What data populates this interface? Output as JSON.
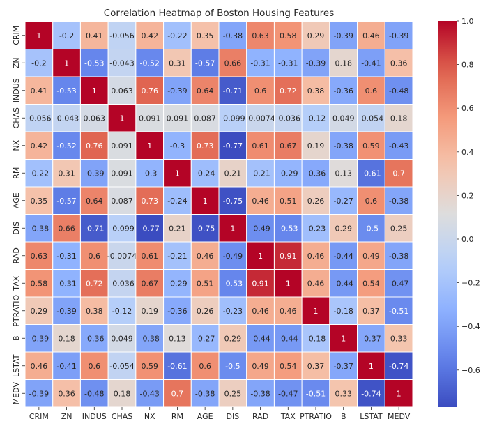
{
  "chart_data": {
    "type": "heatmap",
    "title": "Correlation Heatmap of Boston Housing Features",
    "xlabel": "",
    "ylabel": "",
    "x_labels": [
      "CRIM",
      "ZN",
      "INDUS",
      "CHAS",
      "NX",
      "RM",
      "AGE",
      "DIS",
      "RAD",
      "TAX",
      "PTRATIO",
      "B",
      "LSTAT",
      "MEDV"
    ],
    "y_labels": [
      "CRIM",
      "ZN",
      "INDUS",
      "CHAS",
      "NX",
      "RM",
      "AGE",
      "DIS",
      "RAD",
      "TAX",
      "PTRATIO",
      "B",
      "LSTAT",
      "MEDV"
    ],
    "values": [
      [
        1,
        -0.2,
        0.41,
        -0.056,
        0.42,
        -0.22,
        0.35,
        -0.38,
        0.63,
        0.58,
        0.29,
        -0.39,
        0.46,
        -0.39
      ],
      [
        -0.2,
        1,
        -0.53,
        -0.043,
        -0.52,
        0.31,
        -0.57,
        0.66,
        -0.31,
        -0.31,
        -0.39,
        0.18,
        -0.41,
        0.36
      ],
      [
        0.41,
        -0.53,
        1,
        0.063,
        0.76,
        -0.39,
        0.64,
        -0.71,
        0.6,
        0.72,
        0.38,
        -0.36,
        0.6,
        -0.48
      ],
      [
        -0.056,
        -0.043,
        0.063,
        1,
        0.091,
        0.091,
        0.087,
        -0.099,
        -0.0074,
        -0.036,
        -0.12,
        0.049,
        -0.054,
        0.18
      ],
      [
        0.42,
        -0.52,
        0.76,
        0.091,
        1,
        -0.3,
        0.73,
        -0.77,
        0.61,
        0.67,
        0.19,
        -0.38,
        0.59,
        -0.43
      ],
      [
        -0.22,
        0.31,
        -0.39,
        0.091,
        -0.3,
        1,
        -0.24,
        0.21,
        -0.21,
        -0.29,
        -0.36,
        0.13,
        -0.61,
        0.7
      ],
      [
        0.35,
        -0.57,
        0.64,
        0.087,
        0.73,
        -0.24,
        1,
        -0.75,
        0.46,
        0.51,
        0.26,
        -0.27,
        0.6,
        -0.38
      ],
      [
        -0.38,
        0.66,
        -0.71,
        -0.099,
        -0.77,
        0.21,
        -0.75,
        1,
        -0.49,
        -0.53,
        -0.23,
        0.29,
        -0.5,
        0.25
      ],
      [
        0.63,
        -0.31,
        0.6,
        -0.0074,
        0.61,
        -0.21,
        0.46,
        -0.49,
        1,
        0.91,
        0.46,
        -0.44,
        0.49,
        -0.38
      ],
      [
        0.58,
        -0.31,
        0.72,
        -0.036,
        0.67,
        -0.29,
        0.51,
        -0.53,
        0.91,
        1,
        0.46,
        -0.44,
        0.54,
        -0.47
      ],
      [
        0.29,
        -0.39,
        0.38,
        -0.12,
        0.19,
        -0.36,
        0.26,
        -0.23,
        0.46,
        0.46,
        1,
        -0.18,
        0.37,
        -0.51
      ],
      [
        -0.39,
        0.18,
        -0.36,
        0.049,
        -0.38,
        0.13,
        -0.27,
        0.29,
        -0.44,
        -0.44,
        -0.18,
        1,
        -0.37,
        0.33
      ],
      [
        0.46,
        -0.41,
        0.6,
        -0.054,
        0.59,
        -0.61,
        0.6,
        -0.5,
        0.49,
        0.54,
        0.37,
        -0.37,
        1,
        -0.74
      ],
      [
        -0.39,
        0.36,
        -0.48,
        0.18,
        -0.43,
        0.7,
        -0.38,
        0.25,
        -0.38,
        -0.47,
        -0.51,
        0.33,
        -0.74,
        1
      ]
    ],
    "annotate": true,
    "colormap": "coolwarm",
    "vmin": -0.77,
    "vmax": 1.0,
    "colorbar": {
      "ticks": [
        1.0,
        0.8,
        0.6,
        0.4,
        0.2,
        0.0,
        -0.2,
        -0.4,
        -0.6
      ],
      "tick_labels": [
        "1.0",
        "0.8",
        "0.6",
        "0.4",
        "0.2",
        "0.0",
        "−0.2",
        "−0.4",
        "−0.6"
      ],
      "placement": "right"
    },
    "grid": false
  }
}
